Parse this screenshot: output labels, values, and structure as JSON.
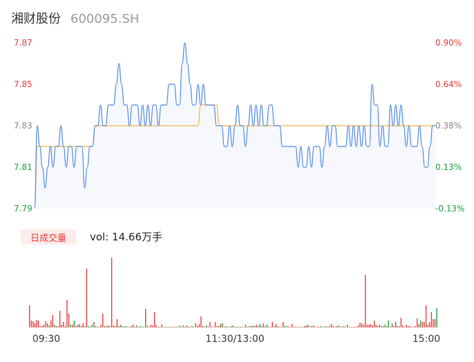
{
  "stock": {
    "name": "湘财股份",
    "code": "600095.SH"
  },
  "volume_tab": {
    "label": "日成交量",
    "text": "vol: 14.66万手"
  },
  "colors": {
    "up": "#e83a3a",
    "down": "#1a9e3a",
    "price_line": "#4a86e8",
    "avg_line": "#f0b040",
    "neutral": "#888888"
  },
  "chart_data": [
    {
      "type": "line",
      "title": "",
      "y_ticks": [
        "7.87",
        "7.85",
        "7.83",
        "7.81",
        "7.79"
      ],
      "y_right_ticks": [
        "0.90%",
        "0.64%",
        "0.38%",
        "0.13%",
        "-0.13%"
      ],
      "ylim": [
        7.79,
        7.87
      ],
      "x_ticks": [
        "09:30",
        "11:30/13:00",
        "15:00"
      ],
      "series": [
        {
          "values": [
            7.79,
            7.83,
            7.82,
            7.81,
            7.8,
            7.81,
            7.82,
            7.81,
            7.82,
            7.82,
            7.83,
            7.82,
            7.81,
            7.82,
            7.82,
            7.81,
            7.82,
            7.82,
            7.82,
            7.8,
            7.81,
            7.82,
            7.82,
            7.83,
            7.83,
            7.84,
            7.83,
            7.83,
            7.84,
            7.84,
            7.84,
            7.85,
            7.86,
            7.85,
            7.84,
            7.84,
            7.83,
            7.84,
            7.84,
            7.84,
            7.83,
            7.84,
            7.83,
            7.84,
            7.83,
            7.84,
            7.84,
            7.83,
            7.84,
            7.84,
            7.84,
            7.85,
            7.85,
            7.85,
            7.84,
            7.84,
            7.86,
            7.87,
            7.86,
            7.85,
            7.84,
            7.84,
            7.85,
            7.84,
            7.85,
            7.84,
            7.84,
            7.84,
            7.84,
            7.83,
            7.83,
            7.83,
            7.82,
            7.82,
            7.83,
            7.82,
            7.83,
            7.84,
            7.83,
            7.83,
            7.82,
            7.83,
            7.84,
            7.83,
            7.84,
            7.83,
            7.84,
            7.83,
            7.83,
            7.84,
            7.84,
            7.83,
            7.83,
            7.83,
            7.82,
            7.82,
            7.82,
            7.82,
            7.82,
            7.82,
            7.81,
            7.82,
            7.81,
            7.81,
            7.82,
            7.81,
            7.82,
            7.82,
            7.82,
            7.81,
            7.82,
            7.83,
            7.82,
            7.83,
            7.83,
            7.82,
            7.82,
            7.82,
            7.82,
            7.83,
            7.82,
            7.83,
            7.82,
            7.83,
            7.82,
            7.83,
            7.82,
            7.82,
            7.85,
            7.84,
            7.84,
            7.82,
            7.83,
            7.82,
            7.82,
            7.84,
            7.83,
            7.84,
            7.83,
            7.84,
            7.83,
            7.82,
            7.83,
            7.82,
            7.82,
            7.82,
            7.83,
            7.82,
            7.81,
            7.81,
            7.82,
            7.83,
            7.83
          ]
        },
        {
          "values": [
            7.79,
            7.82,
            7.82,
            7.82,
            7.82,
            7.82,
            7.82,
            7.82,
            7.82,
            7.82,
            7.82,
            7.82,
            7.82,
            7.82,
            7.82,
            7.82,
            7.82,
            7.82,
            7.82,
            7.82,
            7.82,
            7.82,
            7.82,
            7.83,
            7.83,
            7.83,
            7.83,
            7.83,
            7.83,
            7.83,
            7.83,
            7.83,
            7.83,
            7.83,
            7.83,
            7.83,
            7.83,
            7.83,
            7.83,
            7.83,
            7.83,
            7.83,
            7.83,
            7.83,
            7.83,
            7.83,
            7.83,
            7.83,
            7.83,
            7.83,
            7.83,
            7.83,
            7.83,
            7.83,
            7.83,
            7.83,
            7.83,
            7.83,
            7.83,
            7.83,
            7.83,
            7.83,
            7.83,
            7.84,
            7.84,
            7.84,
            7.84,
            7.84,
            7.84,
            7.84,
            7.83,
            7.83,
            7.83,
            7.83,
            7.83,
            7.83,
            7.83,
            7.83,
            7.83,
            7.83,
            7.83,
            7.83,
            7.83,
            7.83,
            7.83,
            7.83,
            7.83,
            7.83,
            7.83,
            7.83,
            7.83,
            7.83,
            7.83,
            7.83,
            7.83,
            7.83,
            7.83,
            7.83,
            7.83,
            7.83,
            7.83,
            7.83,
            7.83,
            7.83,
            7.83,
            7.83,
            7.83,
            7.83,
            7.83,
            7.83,
            7.83,
            7.83,
            7.83,
            7.83,
            7.83,
            7.83,
            7.83,
            7.83,
            7.83,
            7.83,
            7.83,
            7.83,
            7.83,
            7.83,
            7.83,
            7.83,
            7.83,
            7.83,
            7.83,
            7.83,
            7.83,
            7.83,
            7.83,
            7.83,
            7.83,
            7.83,
            7.83,
            7.83,
            7.83,
            7.83,
            7.83,
            7.83,
            7.83,
            7.83,
            7.83,
            7.83,
            7.83,
            7.83,
            7.83,
            7.83,
            7.83,
            7.83,
            7.83
          ]
        }
      ]
    },
    {
      "type": "bar",
      "ylim": [
        0,
        100
      ],
      "values": [
        32,
        10,
        9,
        6,
        11,
        10,
        2,
        2,
        4,
        9,
        6,
        3,
        10,
        18,
        4,
        2,
        2,
        24,
        4,
        8,
        2,
        40,
        20,
        4,
        4,
        10,
        2,
        4,
        5,
        2,
        6,
        2,
        85,
        2,
        1,
        4,
        8,
        2,
        1,
        1,
        4,
        20,
        2,
        2,
        3,
        2,
        101,
        3,
        2,
        12,
        2,
        4,
        2,
        1,
        2,
        1,
        1,
        2,
        4,
        1,
        3,
        1,
        2,
        1,
        1,
        27,
        2,
        1,
        4,
        3,
        22,
        3,
        1,
        1,
        5,
        1,
        1,
        1,
        1,
        1,
        1,
        1,
        1,
        1,
        3,
        1,
        3,
        1,
        3,
        1,
        1,
        2,
        1,
        6,
        2,
        5,
        16,
        2,
        1,
        3,
        1,
        8,
        1,
        1,
        8,
        2,
        2,
        5,
        6,
        1,
        2,
        1,
        1,
        2,
        3,
        1,
        1,
        1,
        1,
        1,
        1,
        4,
        1,
        2,
        2,
        3,
        2,
        4,
        2,
        5,
        2,
        6,
        2,
        4,
        1,
        1,
        8,
        2,
        5,
        2,
        1,
        1,
        8,
        2,
        2,
        1,
        1,
        5,
        1,
        1,
        1,
        1,
        1,
        1,
        2,
        3,
        4,
        1,
        2,
        3,
        1,
        1,
        1,
        2,
        1,
        1,
        2,
        1,
        2,
        5,
        2,
        1,
        2,
        3,
        1,
        1,
        2,
        1,
        4,
        1,
        1,
        1,
        1,
        1,
        3,
        7,
        6,
        4,
        76,
        4,
        4,
        5,
        3,
        10,
        4,
        2,
        4,
        2,
        2,
        4,
        2,
        10,
        1,
        6,
        2,
        8,
        2,
        2,
        14,
        3,
        1,
        4,
        2,
        2,
        1,
        1,
        2,
        13,
        5,
        10,
        8,
        8,
        32,
        4,
        8,
        22,
        12,
        12,
        28
      ],
      "up": [
        true,
        true,
        true,
        true,
        true,
        true,
        true,
        true,
        true,
        true,
        true,
        false,
        true,
        true,
        false,
        true,
        true,
        true,
        true,
        true,
        true,
        true,
        true,
        false,
        true,
        false,
        true,
        false,
        true,
        false,
        true,
        true,
        true,
        false,
        false,
        false,
        true,
        true,
        false,
        true,
        true,
        true,
        false,
        true,
        true,
        false,
        true,
        true,
        true,
        true,
        true,
        false,
        true,
        false,
        false,
        true,
        true,
        false,
        true,
        false,
        true,
        false,
        false,
        true,
        false,
        true,
        false,
        true,
        true,
        true,
        true,
        true,
        false,
        true,
        true,
        false,
        true,
        false,
        true,
        false,
        true,
        true,
        false,
        true,
        false,
        false,
        true,
        true,
        false,
        true,
        true,
        false,
        false,
        true,
        true,
        true,
        true,
        true,
        true,
        false,
        true,
        true,
        false,
        true,
        true,
        false,
        true,
        true,
        false,
        true,
        false,
        true,
        false,
        true,
        false,
        true,
        false,
        true,
        true,
        false,
        true,
        true,
        false,
        true,
        false,
        false,
        true,
        true,
        false,
        false,
        true,
        true,
        true,
        false,
        false,
        true,
        true,
        false,
        true,
        true,
        false,
        true,
        true,
        false,
        false,
        true,
        true,
        true,
        true,
        false,
        true,
        true,
        true,
        false,
        true,
        true,
        false,
        true,
        true,
        true,
        false,
        true,
        true,
        false,
        true,
        false,
        false,
        true,
        true,
        true,
        true,
        true,
        false,
        true,
        true,
        false,
        false,
        true,
        false,
        true,
        true,
        true,
        true,
        false,
        true,
        true,
        true,
        true,
        true,
        true,
        true,
        true,
        true,
        true,
        true,
        true,
        false,
        true,
        true,
        false,
        true,
        false,
        false,
        true,
        true,
        false,
        true,
        true,
        true,
        true,
        true,
        true,
        true,
        true,
        true,
        false,
        true,
        true,
        true,
        false,
        true,
        true,
        true,
        true,
        true,
        true,
        true,
        true,
        false
      ]
    }
  ]
}
